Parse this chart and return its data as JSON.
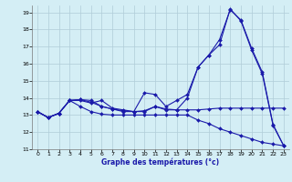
{
  "xlabel": "Graphe des températures (°c)",
  "xlim": [
    -0.5,
    23.5
  ],
  "ylim": [
    11,
    19.4
  ],
  "xticks": [
    0,
    1,
    2,
    3,
    4,
    5,
    6,
    7,
    8,
    9,
    10,
    11,
    12,
    13,
    14,
    15,
    16,
    17,
    18,
    19,
    20,
    21,
    22,
    23
  ],
  "yticks": [
    11,
    12,
    13,
    14,
    15,
    16,
    17,
    18,
    19
  ],
  "bg_color": "#d4eef5",
  "grid_color": "#b0ccd8",
  "line_color": "#1a1aaa",
  "line1_x": [
    0,
    1,
    2,
    3,
    4,
    5,
    6,
    7,
    8,
    9,
    10,
    11,
    12,
    13,
    14,
    15,
    16,
    17,
    18,
    19,
    20,
    21,
    22,
    23
  ],
  "line1_y": [
    13.2,
    12.85,
    13.1,
    13.85,
    13.85,
    13.7,
    13.85,
    13.4,
    13.3,
    13.2,
    14.3,
    14.2,
    13.5,
    13.85,
    14.2,
    15.8,
    16.5,
    17.1,
    19.2,
    18.5,
    16.8,
    15.4,
    12.4,
    11.2
  ],
  "line2_x": [
    0,
    1,
    2,
    3,
    4,
    5,
    6,
    7,
    8,
    9,
    10,
    11,
    12,
    13,
    14,
    15,
    16,
    17,
    18,
    19,
    20,
    21,
    22,
    23
  ],
  "line2_y": [
    13.2,
    12.85,
    13.1,
    13.85,
    13.5,
    13.2,
    13.05,
    13.0,
    13.0,
    13.0,
    13.0,
    13.0,
    13.0,
    13.0,
    13.0,
    12.7,
    12.5,
    12.2,
    12.0,
    11.8,
    11.6,
    11.4,
    11.3,
    11.2
  ],
  "line3_x": [
    0,
    1,
    2,
    3,
    4,
    5,
    6,
    7,
    8,
    9,
    10,
    11,
    12,
    13,
    14,
    15,
    16,
    17,
    18,
    19,
    20,
    21,
    22,
    23
  ],
  "line3_y": [
    13.2,
    12.85,
    13.1,
    13.85,
    13.9,
    13.75,
    13.5,
    13.35,
    13.2,
    13.2,
    13.2,
    13.5,
    13.3,
    13.3,
    13.3,
    13.3,
    13.35,
    13.4,
    13.4,
    13.4,
    13.4,
    13.4,
    13.4,
    13.4
  ],
  "line4_x": [
    0,
    1,
    2,
    3,
    4,
    5,
    6,
    7,
    8,
    9,
    10,
    11,
    12,
    13,
    14,
    15,
    16,
    17,
    18,
    19,
    20,
    21,
    22,
    23
  ],
  "line4_y": [
    13.2,
    12.85,
    13.1,
    13.85,
    13.9,
    13.85,
    13.5,
    13.35,
    13.25,
    13.2,
    13.25,
    13.5,
    13.35,
    13.3,
    14.0,
    15.8,
    16.5,
    17.4,
    19.15,
    18.55,
    16.9,
    15.5,
    12.45,
    11.2
  ]
}
